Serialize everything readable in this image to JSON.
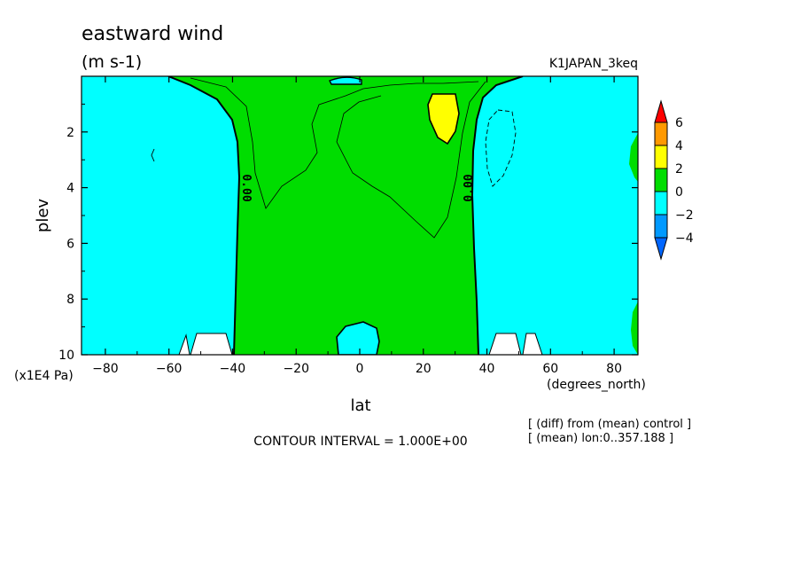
{
  "chart_data": {
    "type": "heatmap",
    "title": "eastward wind",
    "subtitle": "(m s-1)",
    "dataset_label": "K1JAPAN_3keq",
    "xlabel": "lat",
    "xunit": "(degrees_north)",
    "ylabel": "plev",
    "yunit": "(x1E4 Pa)",
    "xlim": [
      -87.5,
      87.5
    ],
    "ylim": [
      10,
      0
    ],
    "y_inverted": true,
    "xticks": [
      "-80",
      "-60",
      "-40",
      "-20",
      "0",
      "20",
      "40",
      "60",
      "80"
    ],
    "yticks": [
      "2",
      "4",
      "6",
      "8",
      "10"
    ],
    "contour_interval_text": "CONTOUR INTERVAL = 1.000E+00",
    "contour_labels": [
      "0.00",
      "0.00"
    ],
    "notes": [
      "[ (diff) from (mean) control ]",
      "[ (mean) lon:0..357.188 ]"
    ],
    "colorbar": {
      "tick_labels": [
        "6",
        "4",
        "2",
        "0",
        "−2",
        "−4"
      ],
      "levels": [
        {
          "range": [
            4,
            6
          ],
          "color": "#ff9900"
        },
        {
          "range": [
            2,
            4
          ],
          "color": "#ffff00"
        },
        {
          "range": [
            0,
            2
          ],
          "color": "#00dd00"
        },
        {
          "range": [
            -2,
            0
          ],
          "color": "#00ffff"
        },
        {
          "range": [
            -4,
            -2
          ],
          "color": "#0099ff"
        }
      ],
      "over_color": "#ff0000",
      "under_color": "#0066ff"
    },
    "regions": [
      {
        "name": "southern-negative",
        "value_range": [
          -2,
          0
        ],
        "color": "#00ffff",
        "lat_range": [
          -87.5,
          -40
        ],
        "plev_range": [
          0,
          10
        ]
      },
      {
        "name": "central-positive",
        "value_range": [
          0,
          2
        ],
        "color": "#00dd00",
        "lat_range": [
          -40,
          37
        ],
        "plev_range": [
          0,
          10
        ]
      },
      {
        "name": "northern-negative",
        "value_range": [
          -2,
          0
        ],
        "color": "#00ffff",
        "lat_range": [
          37,
          87.5
        ],
        "plev_range": [
          0,
          10
        ]
      },
      {
        "name": "positive-maximum",
        "value_range": [
          2,
          4
        ],
        "color": "#ffff00",
        "lat_center": 25,
        "plev_range": [
          0.6,
          2.5
        ]
      },
      {
        "name": "negative-surface-cell",
        "value_range": [
          -2,
          0
        ],
        "color": "#00ffff",
        "lat_center": -2,
        "plev_range": [
          8.8,
          10
        ]
      }
    ],
    "grid": false,
    "legend_position": "right"
  }
}
